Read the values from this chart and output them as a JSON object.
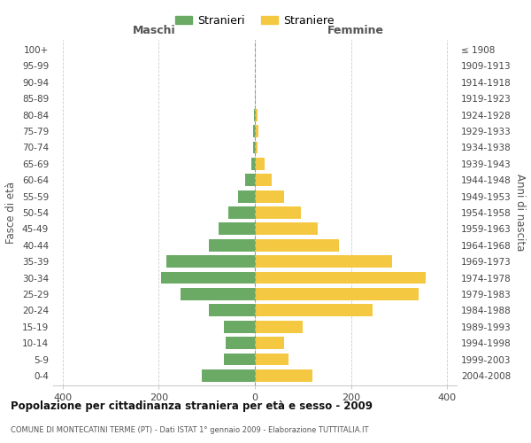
{
  "age_groups": [
    "0-4",
    "5-9",
    "10-14",
    "15-19",
    "20-24",
    "25-29",
    "30-34",
    "35-39",
    "40-44",
    "45-49",
    "50-54",
    "55-59",
    "60-64",
    "65-69",
    "70-74",
    "75-79",
    "80-84",
    "85-89",
    "90-94",
    "95-99",
    "100+"
  ],
  "birth_years": [
    "2004-2008",
    "1999-2003",
    "1994-1998",
    "1989-1993",
    "1984-1988",
    "1979-1983",
    "1974-1978",
    "1969-1973",
    "1964-1968",
    "1959-1963",
    "1954-1958",
    "1949-1953",
    "1944-1948",
    "1939-1943",
    "1934-1938",
    "1929-1933",
    "1924-1928",
    "1919-1923",
    "1914-1918",
    "1909-1913",
    "≤ 1908"
  ],
  "maschi": [
    110,
    65,
    60,
    65,
    95,
    155,
    195,
    185,
    95,
    75,
    55,
    35,
    20,
    8,
    3,
    4,
    2,
    0,
    0,
    0,
    0
  ],
  "femmine": [
    120,
    70,
    60,
    100,
    245,
    340,
    355,
    285,
    175,
    130,
    95,
    60,
    35,
    20,
    5,
    8,
    5,
    2,
    0,
    0,
    0
  ],
  "color_maschi": "#6aaa64",
  "color_femmine": "#f5c842",
  "title": "Popolazione per cittadinanza straniera per età e sesso - 2009",
  "subtitle": "COMUNE DI MONTECATINI TERME (PT) - Dati ISTAT 1° gennaio 2009 - Elaborazione TUTTITALIA.IT",
  "xlabel_left": "Maschi",
  "xlabel_right": "Femmine",
  "ylabel_left": "Fasce di età",
  "ylabel_right": "Anni di nascita",
  "legend_maschi": "Stranieri",
  "legend_femmine": "Straniere",
  "xlim": 420,
  "background_color": "#ffffff",
  "grid_color": "#cccccc"
}
